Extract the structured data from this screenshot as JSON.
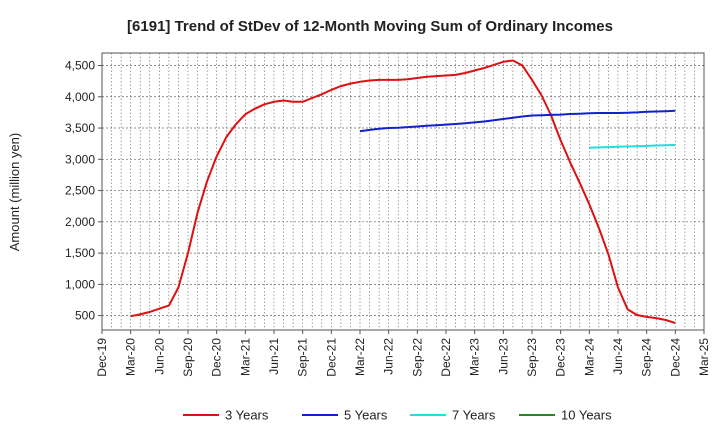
{
  "chart_data": {
    "type": "line",
    "title": "[6191]  Trend of StDev of 12-Month Moving Sum of Ordinary Incomes",
    "xlabel": "",
    "ylabel": "Amount (million yen)",
    "ylim": [
      270,
      4700
    ],
    "yticks": [
      500,
      1000,
      1500,
      2000,
      2500,
      3000,
      3500,
      4000,
      4500
    ],
    "ytick_labels": [
      "500",
      "1,000",
      "1,500",
      "2,000",
      "2,500",
      "3,000",
      "3,500",
      "4,000",
      "4,500"
    ],
    "x_tick_labels": [
      "Dec-19",
      "Mar-20",
      "Jun-20",
      "Sep-20",
      "Dec-20",
      "Mar-21",
      "Jun-21",
      "Sep-21",
      "Dec-21",
      "Mar-22",
      "Jun-22",
      "Sep-22",
      "Dec-22",
      "Mar-23",
      "Jun-23",
      "Sep-23",
      "Dec-23",
      "Mar-24",
      "Jun-24",
      "Sep-24",
      "Dec-24",
      "Mar-25"
    ],
    "grid": true,
    "legend_position": "bottom",
    "series": [
      {
        "name": "3 Years",
        "color": "#dd1111",
        "values": [
          [
            "2020-03",
            490
          ],
          [
            "2020-04",
            520
          ],
          [
            "2020-05",
            560
          ],
          [
            "2020-06",
            610
          ],
          [
            "2020-07",
            660
          ],
          [
            "2020-08",
            950
          ],
          [
            "2020-09",
            1500
          ],
          [
            "2020-10",
            2150
          ],
          [
            "2020-11",
            2650
          ],
          [
            "2020-12",
            3050
          ],
          [
            "2021-01",
            3350
          ],
          [
            "2021-02",
            3560
          ],
          [
            "2021-03",
            3720
          ],
          [
            "2021-04",
            3810
          ],
          [
            "2021-05",
            3880
          ],
          [
            "2021-06",
            3920
          ],
          [
            "2021-07",
            3940
          ],
          [
            "2021-08",
            3920
          ],
          [
            "2021-09",
            3920
          ],
          [
            "2021-10",
            3980
          ],
          [
            "2021-11",
            4040
          ],
          [
            "2021-12",
            4110
          ],
          [
            "2022-01",
            4170
          ],
          [
            "2022-02",
            4210
          ],
          [
            "2022-03",
            4240
          ],
          [
            "2022-04",
            4260
          ],
          [
            "2022-05",
            4270
          ],
          [
            "2022-06",
            4270
          ],
          [
            "2022-07",
            4270
          ],
          [
            "2022-08",
            4280
          ],
          [
            "2022-09",
            4300
          ],
          [
            "2022-10",
            4320
          ],
          [
            "2022-11",
            4330
          ],
          [
            "2022-12",
            4340
          ],
          [
            "2023-01",
            4350
          ],
          [
            "2023-02",
            4380
          ],
          [
            "2023-03",
            4420
          ],
          [
            "2023-04",
            4460
          ],
          [
            "2023-05",
            4510
          ],
          [
            "2023-06",
            4560
          ],
          [
            "2023-07",
            4580
          ],
          [
            "2023-08",
            4500
          ],
          [
            "2023-09",
            4270
          ],
          [
            "2023-10",
            4020
          ],
          [
            "2023-11",
            3700
          ],
          [
            "2023-12",
            3300
          ],
          [
            "2024-01",
            2950
          ],
          [
            "2024-02",
            2620
          ],
          [
            "2024-03",
            2280
          ],
          [
            "2024-04",
            1900
          ],
          [
            "2024-05",
            1480
          ],
          [
            "2024-06",
            950
          ],
          [
            "2024-07",
            600
          ],
          [
            "2024-08",
            510
          ],
          [
            "2024-09",
            480
          ],
          [
            "2024-10",
            460
          ],
          [
            "2024-11",
            430
          ],
          [
            "2024-12",
            380
          ]
        ]
      },
      {
        "name": "5 Years",
        "color": "#1122cc",
        "values": [
          [
            "2022-03",
            3450
          ],
          [
            "2022-04",
            3470
          ],
          [
            "2022-05",
            3490
          ],
          [
            "2022-06",
            3500
          ],
          [
            "2022-07",
            3505
          ],
          [
            "2022-08",
            3515
          ],
          [
            "2022-09",
            3525
          ],
          [
            "2022-10",
            3535
          ],
          [
            "2022-11",
            3545
          ],
          [
            "2022-12",
            3555
          ],
          [
            "2023-01",
            3565
          ],
          [
            "2023-02",
            3575
          ],
          [
            "2023-03",
            3590
          ],
          [
            "2023-04",
            3605
          ],
          [
            "2023-05",
            3625
          ],
          [
            "2023-06",
            3645
          ],
          [
            "2023-07",
            3665
          ],
          [
            "2023-08",
            3685
          ],
          [
            "2023-09",
            3700
          ],
          [
            "2023-10",
            3705
          ],
          [
            "2023-11",
            3710
          ],
          [
            "2023-12",
            3715
          ],
          [
            "2024-01",
            3725
          ],
          [
            "2024-02",
            3730
          ],
          [
            "2024-03",
            3735
          ],
          [
            "2024-04",
            3740
          ],
          [
            "2024-05",
            3740
          ],
          [
            "2024-06",
            3740
          ],
          [
            "2024-07",
            3745
          ],
          [
            "2024-08",
            3750
          ],
          [
            "2024-09",
            3760
          ],
          [
            "2024-10",
            3765
          ],
          [
            "2024-11",
            3770
          ],
          [
            "2024-12",
            3775
          ]
        ]
      },
      {
        "name": "7 Years",
        "color": "#22dddd",
        "values": [
          [
            "2024-03",
            3185
          ],
          [
            "2024-04",
            3190
          ],
          [
            "2024-05",
            3195
          ],
          [
            "2024-06",
            3200
          ],
          [
            "2024-07",
            3205
          ],
          [
            "2024-08",
            3210
          ],
          [
            "2024-09",
            3215
          ],
          [
            "2024-10",
            3220
          ],
          [
            "2024-11",
            3225
          ],
          [
            "2024-12",
            3230
          ]
        ]
      },
      {
        "name": "10 Years",
        "color": "#228822",
        "values": []
      }
    ]
  }
}
